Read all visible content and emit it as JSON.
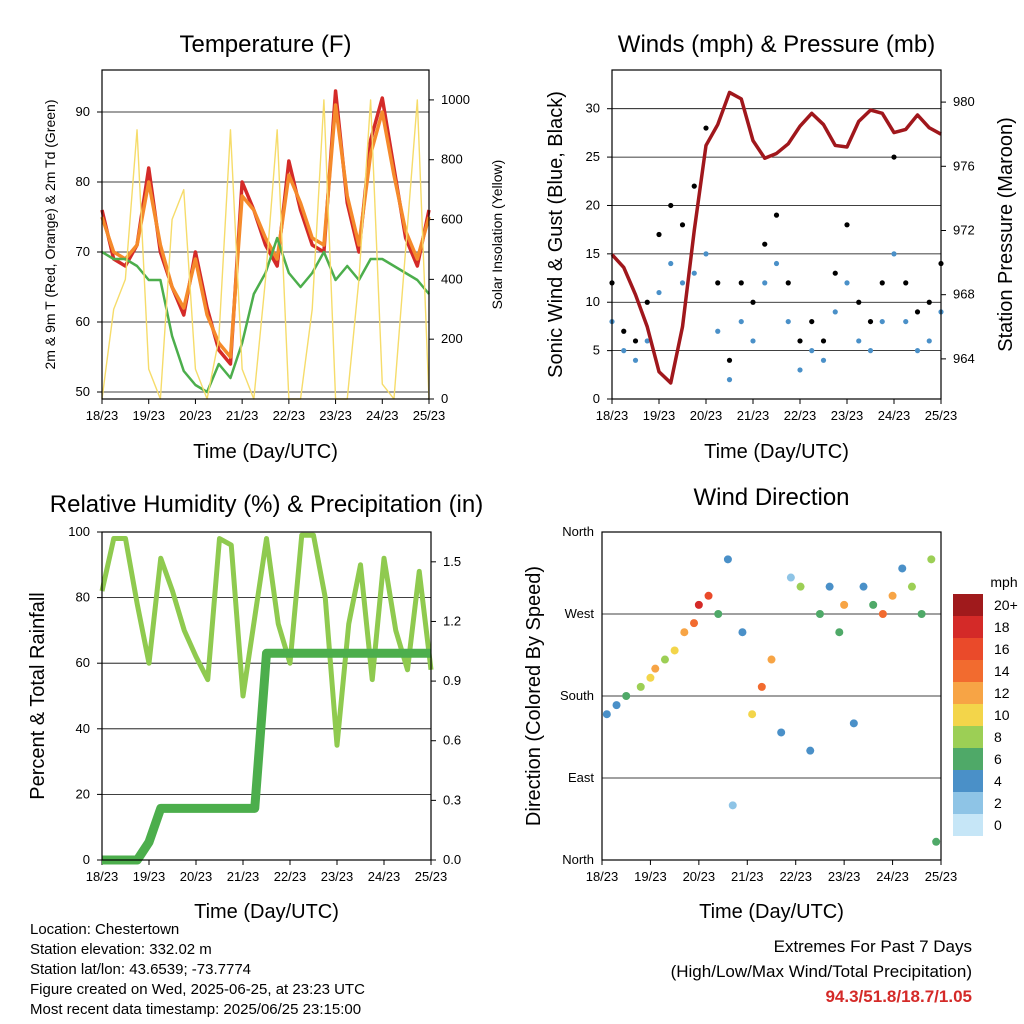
{
  "time_ticks": [
    "18/23",
    "19/23",
    "20/23",
    "21/23",
    "22/23",
    "23/23",
    "24/23",
    "25/23"
  ],
  "chart_data": [
    {
      "type": "line",
      "title": "Temperature (F)",
      "xlabel": "Time (Day/UTC)",
      "ylabel": "2m & 9m T (Red, Orange) & 2m Td (Green)",
      "y2label": "Solar Insolation (Yellow)",
      "x_ticks": [
        "18/23",
        "19/23",
        "20/23",
        "21/23",
        "22/23",
        "23/23",
        "24/23",
        "25/23"
      ],
      "ylim": [
        49,
        96
      ],
      "yticks": [
        50,
        60,
        70,
        80,
        90
      ],
      "y2lim": [
        0,
        1100
      ],
      "y2ticks": [
        0,
        200,
        400,
        600,
        800,
        1000
      ],
      "grid": "horizontal",
      "x": [
        0,
        0.25,
        0.5,
        0.75,
        1,
        1.25,
        1.5,
        1.75,
        2,
        2.25,
        2.5,
        2.75,
        3,
        3.25,
        3.5,
        3.75,
        4,
        4.25,
        4.5,
        4.75,
        5,
        5.25,
        5.5,
        5.75,
        6,
        6.25,
        6.5,
        6.75,
        7
      ],
      "series": [
        {
          "name": "2m T",
          "color": "#d42a28",
          "axis": "left",
          "values": [
            76,
            69,
            68,
            71,
            82,
            70,
            65,
            61,
            70,
            62,
            56,
            54,
            80,
            76,
            71,
            68,
            83,
            76,
            71,
            70,
            93,
            77,
            70,
            86,
            92,
            82,
            72,
            68,
            76
          ]
        },
        {
          "name": "9m T",
          "color": "#f58a2b",
          "axis": "left",
          "values": [
            75,
            70,
            69,
            71,
            80,
            71,
            65,
            62,
            69,
            61,
            57,
            55,
            78,
            76,
            72,
            69,
            81,
            77,
            72,
            71,
            91,
            78,
            71,
            84,
            90,
            81,
            73,
            69,
            75
          ]
        },
        {
          "name": "2m Td",
          "color": "#4cae4c",
          "axis": "left",
          "values": [
            70,
            69,
            69,
            68,
            66,
            66,
            58,
            53,
            51,
            50,
            54,
            52,
            57,
            64,
            67,
            72,
            67,
            65,
            67,
            70,
            66,
            68,
            66,
            69,
            69,
            68,
            67,
            66,
            64
          ]
        },
        {
          "name": "Solar Insolation",
          "color": "#f6dc6a",
          "axis": "right",
          "values": [
            0,
            300,
            400,
            900,
            100,
            0,
            600,
            700,
            100,
            0,
            200,
            900,
            100,
            0,
            400,
            900,
            0,
            0,
            300,
            1000,
            0,
            0,
            400,
            1000,
            50,
            0,
            500,
            1000,
            0
          ]
        }
      ]
    },
    {
      "type": "scatter",
      "title": "Winds (mph) & Pressure (mb)",
      "xlabel": "Time (Day/UTC)",
      "ylabel": "Sonic Wind & Gust (Blue, Black)",
      "y2label": "Station Pressure (Maroon)",
      "x_ticks": [
        "18/23",
        "19/23",
        "20/23",
        "21/23",
        "22/23",
        "23/23",
        "24/23",
        "25/23"
      ],
      "ylim": [
        0,
        34
      ],
      "yticks": [
        0,
        5,
        10,
        15,
        20,
        25,
        30
      ],
      "y2lim": [
        961.5,
        982
      ],
      "y2ticks": [
        964,
        968,
        972,
        976,
        980
      ],
      "grid": "horizontal",
      "x": [
        0,
        0.25,
        0.5,
        0.75,
        1,
        1.25,
        1.5,
        1.75,
        2,
        2.25,
        2.5,
        2.75,
        3,
        3.25,
        3.5,
        3.75,
        4,
        4.25,
        4.5,
        4.75,
        5,
        5.25,
        5.5,
        5.75,
        6,
        6.25,
        6.5,
        6.75,
        7
      ],
      "series": [
        {
          "name": "Sonic Wind",
          "color": "#4a90c8",
          "axis": "left",
          "values": [
            8,
            5,
            4,
            6,
            11,
            14,
            12,
            13,
            15,
            7,
            2,
            8,
            6,
            12,
            14,
            8,
            3,
            5,
            4,
            9,
            12,
            6,
            5,
            8,
            15,
            8,
            5,
            6,
            9
          ]
        },
        {
          "name": "Gust",
          "color": "#000000",
          "axis": "left",
          "values": [
            12,
            7,
            6,
            10,
            17,
            20,
            18,
            22,
            28,
            12,
            4,
            12,
            10,
            16,
            19,
            12,
            6,
            8,
            6,
            13,
            18,
            10,
            8,
            12,
            25,
            12,
            9,
            10,
            14
          ]
        },
        {
          "name": "Station Pressure",
          "color": "#a0171c",
          "axis": "right",
          "values": [
            970.5,
            969.7,
            968,
            966,
            963.2,
            962.5,
            966,
            972,
            977.3,
            978.6,
            980.6,
            980.2,
            977.6,
            976.5,
            976.8,
            977.4,
            978.5,
            979.3,
            978.6,
            977.3,
            977.2,
            978.8,
            979.5,
            979.3,
            978.1,
            978.3,
            979.2,
            978.4,
            978
          ]
        }
      ]
    },
    {
      "type": "line",
      "title": "Relative Humidity (%) & Precipitation (in)",
      "xlabel": "Time (Day/UTC)",
      "ylabel": "Percent & Total Rainfall",
      "x_ticks": [
        "18/23",
        "19/23",
        "20/23",
        "21/23",
        "22/23",
        "23/23",
        "24/23",
        "25/23"
      ],
      "ylim": [
        0,
        100
      ],
      "yticks": [
        0,
        20,
        40,
        60,
        80,
        100
      ],
      "y2lim": [
        0,
        1.65
      ],
      "y2ticks": [
        0.0,
        0.3,
        0.6,
        0.9,
        1.2,
        1.5
      ],
      "grid": "horizontal",
      "x": [
        0,
        0.25,
        0.5,
        0.75,
        1,
        1.25,
        1.5,
        1.75,
        2,
        2.25,
        2.5,
        2.75,
        3,
        3.25,
        3.5,
        3.75,
        4,
        4.25,
        4.5,
        4.75,
        5,
        5.25,
        5.5,
        5.75,
        6,
        6.25,
        6.5,
        6.75,
        7
      ],
      "series": [
        {
          "name": "Relative Humidity",
          "color": "#8fca4f",
          "axis": "left",
          "values": [
            82,
            98,
            98,
            78,
            60,
            92,
            82,
            70,
            62,
            55,
            98,
            96,
            50,
            74,
            98,
            72,
            60,
            99,
            99,
            80,
            35,
            72,
            90,
            55,
            92,
            70,
            58,
            88,
            58
          ]
        },
        {
          "name": "Total Rainfall",
          "color": "#4cae4c",
          "axis": "right",
          "values": [
            0,
            0,
            0,
            0,
            0.09,
            0.26,
            0.26,
            0.26,
            0.26,
            0.26,
            0.26,
            0.26,
            0.26,
            0.26,
            1.04,
            1.04,
            1.04,
            1.04,
            1.04,
            1.04,
            1.04,
            1.04,
            1.04,
            1.04,
            1.04,
            1.04,
            1.04,
            1.04,
            1.04
          ]
        }
      ]
    },
    {
      "type": "scatter",
      "title": "Wind Direction",
      "xlabel": "Time (Day/UTC)",
      "ylabel": "Direction (Colored By Speed)",
      "x_ticks": [
        "18/23",
        "19/23",
        "20/23",
        "21/23",
        "22/23",
        "23/23",
        "24/23",
        "25/23"
      ],
      "y_ticks": [
        "North",
        "East",
        "South",
        "West",
        "North"
      ],
      "ylim_deg": [
        0,
        360
      ],
      "colorbar": {
        "title": "mph",
        "labels": [
          "20+",
          "18",
          "16",
          "14",
          "12",
          "10",
          "8",
          "6",
          "4",
          "2",
          "0"
        ],
        "colors": [
          "#a01a1c",
          "#d42a28",
          "#ea4a2a",
          "#f26b2f",
          "#f7a445",
          "#f3d54a",
          "#9ccf55",
          "#4fa968",
          "#4a90c8",
          "#8ec4e6",
          "#c6e6f7"
        ]
      },
      "points": [
        {
          "x": 0.1,
          "deg": 160,
          "speed": 4
        },
        {
          "x": 0.3,
          "deg": 170,
          "speed": 4
        },
        {
          "x": 0.5,
          "deg": 180,
          "speed": 6
        },
        {
          "x": 0.8,
          "deg": 190,
          "speed": 8
        },
        {
          "x": 1.0,
          "deg": 200,
          "speed": 10
        },
        {
          "x": 1.1,
          "deg": 210,
          "speed": 12
        },
        {
          "x": 1.3,
          "deg": 220,
          "speed": 8
        },
        {
          "x": 1.5,
          "deg": 230,
          "speed": 10
        },
        {
          "x": 1.7,
          "deg": 250,
          "speed": 12
        },
        {
          "x": 1.9,
          "deg": 260,
          "speed": 14
        },
        {
          "x": 2.0,
          "deg": 280,
          "speed": 18
        },
        {
          "x": 2.2,
          "deg": 290,
          "speed": 16
        },
        {
          "x": 2.4,
          "deg": 270,
          "speed": 6
        },
        {
          "x": 2.6,
          "deg": 330,
          "speed": 4
        },
        {
          "x": 2.7,
          "deg": 60,
          "speed": 2
        },
        {
          "x": 2.9,
          "deg": 250,
          "speed": 4
        },
        {
          "x": 3.1,
          "deg": 160,
          "speed": 10
        },
        {
          "x": 3.3,
          "deg": 190,
          "speed": 14
        },
        {
          "x": 3.5,
          "deg": 220,
          "speed": 12
        },
        {
          "x": 3.7,
          "deg": 140,
          "speed": 4
        },
        {
          "x": 3.9,
          "deg": 310,
          "speed": 2
        },
        {
          "x": 4.1,
          "deg": 300,
          "speed": 8
        },
        {
          "x": 4.3,
          "deg": 120,
          "speed": 4
        },
        {
          "x": 4.5,
          "deg": 270,
          "speed": 6
        },
        {
          "x": 4.7,
          "deg": 300,
          "speed": 4
        },
        {
          "x": 4.9,
          "deg": 250,
          "speed": 6
        },
        {
          "x": 5.0,
          "deg": 280,
          "speed": 12
        },
        {
          "x": 5.2,
          "deg": 150,
          "speed": 4
        },
        {
          "x": 5.4,
          "deg": 300,
          "speed": 4
        },
        {
          "x": 5.6,
          "deg": 280,
          "speed": 6
        },
        {
          "x": 5.8,
          "deg": 270,
          "speed": 14
        },
        {
          "x": 6.0,
          "deg": 290,
          "speed": 12
        },
        {
          "x": 6.2,
          "deg": 320,
          "speed": 4
        },
        {
          "x": 6.4,
          "deg": 300,
          "speed": 8
        },
        {
          "x": 6.6,
          "deg": 270,
          "speed": 6
        },
        {
          "x": 6.8,
          "deg": 330,
          "speed": 8
        },
        {
          "x": 6.9,
          "deg": 20,
          "speed": 6
        }
      ]
    }
  ],
  "info": {
    "location": "Location: Chestertown",
    "elevation": "Station elevation: 332.02 m",
    "latlon": "Station lat/lon: 43.6539; -73.7774",
    "created": "Figure created on Wed, 2025-06-25, at 23:23 UTC",
    "recent": "Most recent data timestamp: 2025/06/25 23:15:00"
  },
  "extremes": {
    "title": "Extremes For Past 7 Days",
    "subtitle": "(High/Low/Max Wind/Total Precipitation)",
    "values": "94.3/51.8/18.7/1.05"
  }
}
